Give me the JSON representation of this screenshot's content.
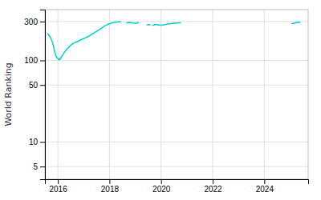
{
  "chart_data": {
    "type": "line",
    "ylabel": "World Ranking",
    "x": [
      2015.6,
      2015.65,
      2015.7,
      2015.75,
      2015.8,
      2015.85,
      2015.9,
      2015.95,
      2016.0,
      2016.05,
      2016.1,
      2016.15,
      2016.25,
      2016.35,
      2016.45,
      2016.55,
      2016.65,
      2016.75,
      2016.85,
      2016.95,
      2017.05,
      2017.15,
      2017.25,
      2017.35,
      2017.45,
      2017.55,
      2017.65,
      2017.75,
      2017.85,
      2017.95,
      2018.05,
      2018.15,
      2018.25,
      2018.35,
      2018.45,
      null,
      2018.65,
      2018.72,
      2018.79,
      2018.86,
      2018.93,
      2019.0,
      2019.07,
      2019.14,
      null,
      2019.45,
      2019.52,
      2019.59,
      null,
      2019.65,
      2019.72,
      2019.79,
      2019.86,
      2019.93,
      2020.0,
      2020.07,
      2020.14,
      2020.21,
      2020.28,
      2020.35,
      2020.42,
      2020.49,
      2020.56,
      2020.63,
      2020.7,
      2020.77,
      null,
      2025.05,
      2025.12,
      2025.19,
      2025.26,
      2025.33,
      2025.4
    ],
    "values": [
      215,
      205,
      195,
      180,
      165,
      140,
      120,
      110,
      105,
      102,
      105,
      112,
      125,
      138,
      148,
      158,
      165,
      170,
      176,
      182,
      188,
      195,
      203,
      212,
      222,
      232,
      244,
      256,
      268,
      278,
      285,
      291,
      295,
      298,
      300,
      null,
      288,
      291,
      293,
      290,
      287,
      285,
      287,
      289,
      null,
      272,
      275,
      273,
      null,
      268,
      272,
      276,
      274,
      272,
      270,
      272,
      275,
      278,
      280,
      282,
      284,
      286,
      288,
      287,
      289,
      291,
      null,
      282,
      285,
      288,
      292,
      293,
      292
    ],
    "color": "#00d0d0",
    "log": "y",
    "xlim": [
      2015.5,
      2025.7
    ],
    "ylim": [
      3.5,
      420
    ],
    "xticks": [
      2016,
      2018,
      2020,
      2022,
      2024
    ],
    "yticks": [
      5,
      10,
      50,
      100,
      300
    ],
    "grid": true
  }
}
